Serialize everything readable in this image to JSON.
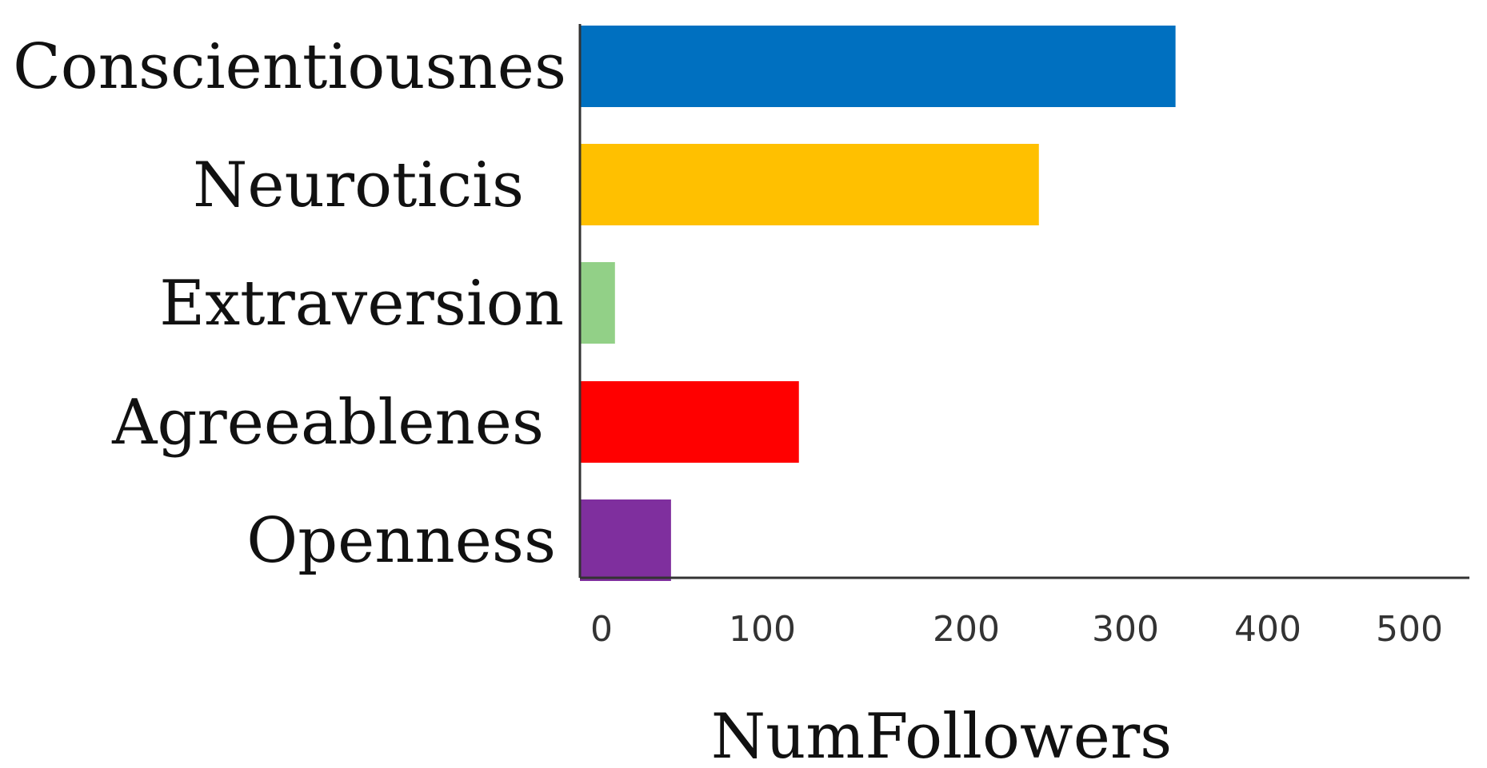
{
  "chart_data": {
    "type": "bar",
    "orientation": "horizontal",
    "categories": [
      "Conscientiousnes",
      "Neuroticis",
      "Extraversion",
      "Agreeablenes",
      "Openness"
    ],
    "values": [
      340,
      262,
      20,
      125,
      52
    ],
    "colors": [
      "#0070C0",
      "#FFC000",
      "#92D087",
      "#FF0000",
      "#7F2F9E"
    ],
    "xlabel": "NumFollowers",
    "ylabel": "",
    "xlim": [
      0,
      500
    ],
    "xticks": [
      0,
      100,
      200,
      300,
      400,
      500
    ],
    "grid": false,
    "legend": "none"
  }
}
